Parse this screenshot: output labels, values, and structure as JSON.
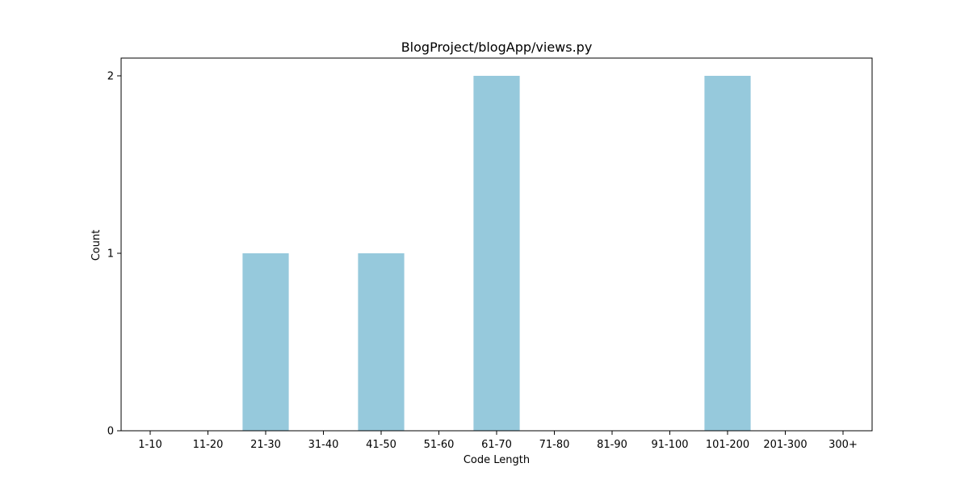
{
  "chart_data": {
    "type": "bar",
    "title": "BlogProject/blogApp/views.py",
    "xlabel": "Code Length",
    "ylabel": "Count",
    "categories": [
      "1-10",
      "11-20",
      "21-30",
      "31-40",
      "41-50",
      "51-60",
      "61-70",
      "71-80",
      "81-90",
      "91-100",
      "101-200",
      "201-300",
      "300+"
    ],
    "values": [
      0,
      0,
      1,
      0,
      1,
      0,
      2,
      0,
      0,
      0,
      2,
      0,
      0
    ],
    "ylim": [
      0,
      2.1
    ],
    "yticks": [
      0,
      1,
      2
    ],
    "grid": false,
    "bar_color": "#96c9dc"
  }
}
